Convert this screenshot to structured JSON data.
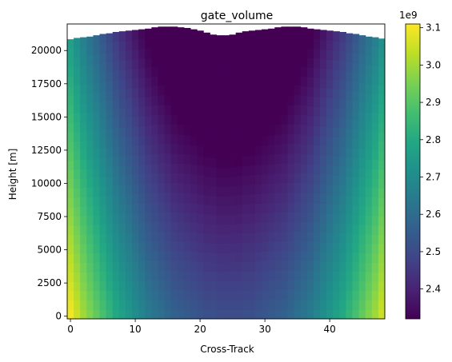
{
  "chart_data": {
    "type": "heatmap",
    "title": "gate_volume",
    "xlabel": "Cross-Track",
    "ylabel": "Height [m]",
    "xlim": [
      -0.5,
      48.5
    ],
    "ylim": [
      -200,
      22000
    ],
    "x_ticks": [
      0,
      10,
      20,
      30,
      40
    ],
    "y_ticks": [
      0,
      2500,
      5000,
      7500,
      10000,
      12500,
      15000,
      17500,
      20000
    ],
    "colorbar": {
      "colormap": "viridis",
      "range": [
        2.32,
        3.11
      ],
      "ticks": [
        2.4,
        2.5,
        2.6,
        2.7,
        2.8,
        2.9,
        3.0,
        3.1
      ],
      "multiplier": "1e9"
    },
    "columns": 49,
    "column_values_1e9": [
      3.1,
      3.05,
      3.0,
      2.96,
      2.92,
      2.88,
      2.84,
      2.8,
      2.77,
      2.74,
      2.71,
      2.68,
      2.65,
      2.63,
      2.61,
      2.59,
      2.57,
      2.56,
      2.55,
      2.54,
      2.53,
      2.52,
      2.52,
      2.51,
      2.51,
      2.51,
      2.51,
      2.52,
      2.52,
      2.53,
      2.54,
      2.55,
      2.56,
      2.57,
      2.59,
      2.61,
      2.63,
      2.65,
      2.68,
      2.71,
      2.74,
      2.77,
      2.8,
      2.84,
      2.88,
      2.92,
      2.96,
      3.0,
      3.05
    ],
    "top_height_m": [
      20850,
      20950,
      21000,
      21050,
      21150,
      21250,
      21300,
      21400,
      21450,
      21500,
      21550,
      21600,
      21650,
      21750,
      21800,
      21800,
      21800,
      21750,
      21700,
      21600,
      21500,
      21350,
      21200,
      21150,
      21150,
      21200,
      21350,
      21450,
      21500,
      21550,
      21600,
      21650,
      21750,
      21800,
      21800,
      21800,
      21750,
      21650,
      21600,
      21550,
      21500,
      21450,
      21400,
      21300,
      21250,
      21150,
      21050,
      21000,
      20900
    ],
    "value_change_rate_per_m_1e9": -1.63e-05
  }
}
